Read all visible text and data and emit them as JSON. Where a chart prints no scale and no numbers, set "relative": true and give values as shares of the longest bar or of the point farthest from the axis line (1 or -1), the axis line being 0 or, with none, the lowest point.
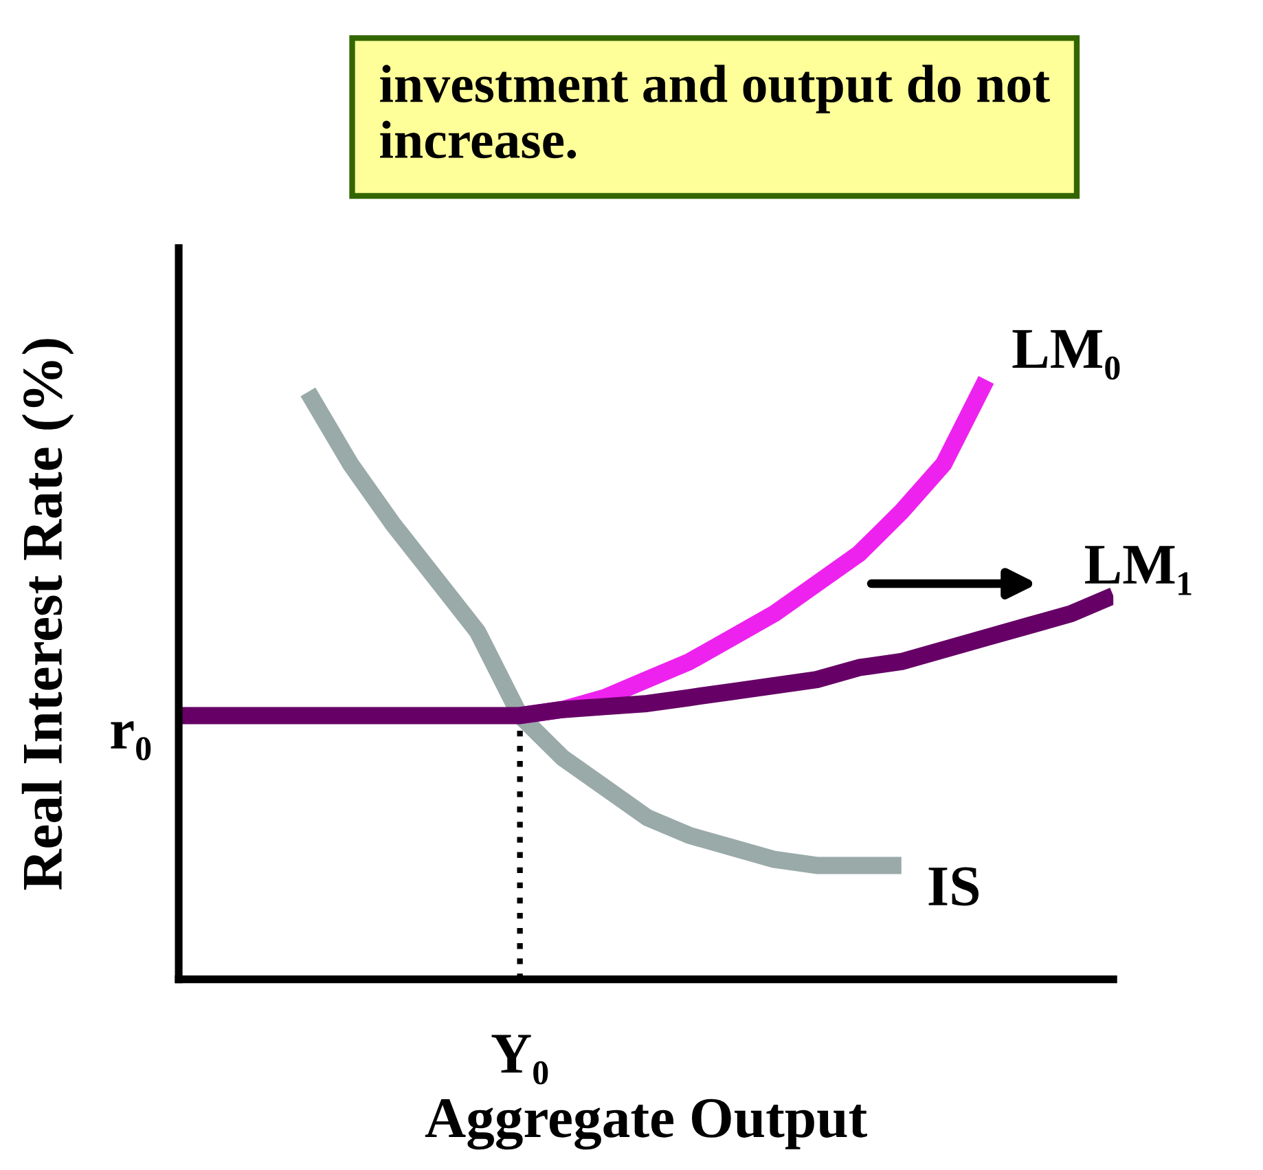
{
  "chart_data": {
    "type": "line",
    "relative": true,
    "xlabel": "Aggregate Output",
    "ylabel": "Real Interest Rate (%)",
    "legend": false,
    "marker": "none",
    "line_style": "solid",
    "categories": [
      null,
      null,
      null,
      null,
      null,
      null,
      null,
      null,
      null,
      null,
      null,
      null,
      null,
      null,
      null,
      null,
      null,
      null,
      null,
      null,
      null,
      null,
      null
    ],
    "series": [
      {
        "name": "IS",
        "color": "#99aaa8",
        "values": [
          null,
          null,
          null,
          0.98,
          0.86,
          0.76,
          0.67,
          0.58,
          0.44,
          0.37,
          0.32,
          0.27,
          0.24,
          0.22,
          0.2,
          0.19,
          0.19,
          0.19,
          null,
          null,
          null,
          null,
          null
        ]
      },
      {
        "name": "LM₀",
        "color": "#ee22ee",
        "values": [
          null,
          null,
          null,
          null,
          null,
          null,
          null,
          null,
          0.44,
          0.45,
          0.47,
          0.5,
          0.53,
          0.57,
          0.61,
          0.66,
          0.71,
          0.78,
          0.86,
          1.0,
          null,
          null,
          null
        ]
      },
      {
        "name": "LM₁",
        "color": "#660066",
        "values": [
          0.44,
          0.44,
          0.44,
          0.44,
          0.44,
          0.44,
          0.44,
          0.44,
          0.44,
          0.45,
          0.455,
          0.46,
          0.47,
          0.48,
          0.49,
          0.5,
          0.52,
          0.53,
          0.55,
          0.57,
          0.59,
          0.61,
          0.64
        ]
      }
    ],
    "annotations": [
      "r₀",
      "Y₀",
      "investment and output do not increase."
    ]
  }
}
